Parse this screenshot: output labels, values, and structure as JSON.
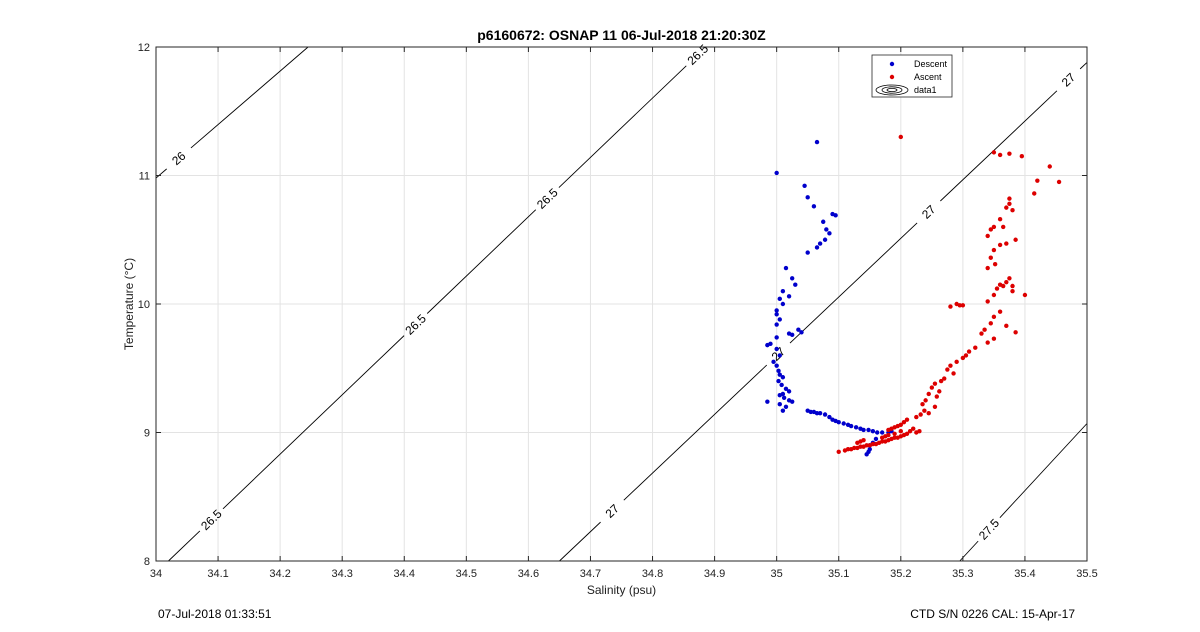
{
  "chart_data": {
    "type": "scatter",
    "title": "p6160672: OSNAP 11 06-Jul-2018 21:20:30Z",
    "xlabel": "Salinity (psu)",
    "ylabel": "Temperature (°C)",
    "xlim": [
      34,
      35.5
    ],
    "ylim": [
      8,
      12
    ],
    "xticks": [
      "34",
      "34.1",
      "34.2",
      "34.3",
      "34.4",
      "34.5",
      "34.6",
      "34.7",
      "34.8",
      "34.9",
      "35",
      "35.1",
      "35.2",
      "35.3",
      "35.4",
      "35.5"
    ],
    "yticks": [
      "8",
      "9",
      "10",
      "11",
      "12"
    ],
    "grid": true,
    "legend_position": "top-right",
    "series": [
      {
        "name": "Descent",
        "color": "#0000cc",
        "points": [
          [
            35.0,
            11.02
          ],
          [
            35.065,
            11.26
          ],
          [
            35.045,
            10.92
          ],
          [
            35.05,
            10.83
          ],
          [
            35.06,
            10.76
          ],
          [
            35.09,
            10.7
          ],
          [
            35.095,
            10.69
          ],
          [
            35.075,
            10.64
          ],
          [
            35.08,
            10.58
          ],
          [
            35.085,
            10.55
          ],
          [
            35.078,
            10.5
          ],
          [
            35.07,
            10.47
          ],
          [
            35.065,
            10.44
          ],
          [
            35.05,
            10.4
          ],
          [
            35.015,
            10.28
          ],
          [
            35.025,
            10.2
          ],
          [
            35.03,
            10.15
          ],
          [
            35.01,
            10.1
          ],
          [
            35.02,
            10.06
          ],
          [
            35.005,
            10.04
          ],
          [
            35.01,
            10.0
          ],
          [
            35.0,
            9.95
          ],
          [
            35.0,
            9.92
          ],
          [
            35.005,
            9.88
          ],
          [
            35.0,
            9.84
          ],
          [
            35.035,
            9.8
          ],
          [
            35.04,
            9.78
          ],
          [
            35.025,
            9.76
          ],
          [
            35.02,
            9.77
          ],
          [
            35.0,
            9.74
          ],
          [
            34.99,
            9.69
          ],
          [
            34.985,
            9.68
          ],
          [
            35.0,
            9.65
          ],
          [
            35.005,
            9.6
          ],
          [
            34.995,
            9.55
          ],
          [
            35.0,
            9.52
          ],
          [
            35.003,
            9.48
          ],
          [
            35.005,
            9.45
          ],
          [
            35.01,
            9.43
          ],
          [
            35.003,
            9.4
          ],
          [
            35.008,
            9.37
          ],
          [
            35.015,
            9.34
          ],
          [
            35.02,
            9.32
          ],
          [
            35.01,
            9.3
          ],
          [
            35.005,
            9.29
          ],
          [
            35.012,
            9.27
          ],
          [
            35.02,
            9.25
          ],
          [
            35.025,
            9.24
          ],
          [
            35.005,
            9.22
          ],
          [
            35.015,
            9.2
          ],
          [
            35.01,
            9.17
          ],
          [
            34.985,
            9.24
          ],
          [
            35.05,
            9.17
          ],
          [
            35.055,
            9.16
          ],
          [
            35.06,
            9.16
          ],
          [
            35.065,
            9.15
          ],
          [
            35.07,
            9.15
          ],
          [
            35.078,
            9.14
          ],
          [
            35.085,
            9.12
          ],
          [
            35.09,
            9.1
          ],
          [
            35.095,
            9.09
          ],
          [
            35.1,
            9.08
          ],
          [
            35.108,
            9.07
          ],
          [
            35.115,
            9.06
          ],
          [
            35.12,
            9.05
          ],
          [
            35.128,
            9.04
          ],
          [
            35.135,
            9.03
          ],
          [
            35.14,
            9.02
          ],
          [
            35.148,
            9.02
          ],
          [
            35.155,
            9.01
          ],
          [
            35.162,
            9.0
          ],
          [
            35.17,
            9.0
          ],
          [
            35.18,
            9.0
          ],
          [
            35.185,
            9.01
          ],
          [
            35.16,
            8.95
          ],
          [
            35.155,
            8.92
          ],
          [
            35.15,
            8.9
          ],
          [
            35.15,
            8.87
          ],
          [
            35.148,
            8.85
          ],
          [
            35.145,
            8.83
          ]
        ]
      },
      {
        "name": "Ascent",
        "color": "#dd0000",
        "points": [
          [
            35.2,
            11.3
          ],
          [
            35.35,
            11.18
          ],
          [
            35.36,
            11.16
          ],
          [
            35.375,
            11.17
          ],
          [
            35.395,
            11.15
          ],
          [
            35.44,
            11.07
          ],
          [
            35.455,
            10.95
          ],
          [
            35.42,
            10.96
          ],
          [
            35.415,
            10.86
          ],
          [
            35.375,
            10.82
          ],
          [
            35.375,
            10.78
          ],
          [
            35.37,
            10.75
          ],
          [
            35.38,
            10.73
          ],
          [
            35.36,
            10.66
          ],
          [
            35.365,
            10.6
          ],
          [
            35.35,
            10.6
          ],
          [
            35.345,
            10.58
          ],
          [
            35.34,
            10.53
          ],
          [
            35.385,
            10.5
          ],
          [
            35.37,
            10.47
          ],
          [
            35.36,
            10.46
          ],
          [
            35.35,
            10.42
          ],
          [
            35.345,
            10.36
          ],
          [
            35.352,
            10.31
          ],
          [
            35.34,
            10.28
          ],
          [
            35.375,
            10.2
          ],
          [
            35.37,
            10.17
          ],
          [
            35.365,
            10.14
          ],
          [
            35.36,
            10.15
          ],
          [
            35.38,
            10.14
          ],
          [
            35.38,
            10.1
          ],
          [
            35.355,
            10.12
          ],
          [
            35.4,
            10.07
          ],
          [
            35.35,
            10.07
          ],
          [
            35.34,
            10.02
          ],
          [
            35.29,
            10.0
          ],
          [
            35.3,
            9.99
          ],
          [
            35.28,
            9.98
          ],
          [
            35.295,
            9.99
          ],
          [
            35.36,
            9.94
          ],
          [
            35.35,
            9.9
          ],
          [
            35.345,
            9.85
          ],
          [
            35.37,
            9.83
          ],
          [
            35.385,
            9.78
          ],
          [
            35.335,
            9.8
          ],
          [
            35.33,
            9.77
          ],
          [
            35.35,
            9.73
          ],
          [
            35.34,
            9.7
          ],
          [
            35.32,
            9.66
          ],
          [
            35.31,
            9.63
          ],
          [
            35.305,
            9.6
          ],
          [
            35.3,
            9.58
          ],
          [
            35.29,
            9.55
          ],
          [
            35.28,
            9.52
          ],
          [
            35.275,
            9.49
          ],
          [
            35.285,
            9.46
          ],
          [
            35.27,
            9.42
          ],
          [
            35.265,
            9.4
          ],
          [
            35.255,
            9.38
          ],
          [
            35.25,
            9.35
          ],
          [
            35.262,
            9.32
          ],
          [
            35.245,
            9.3
          ],
          [
            35.258,
            9.28
          ],
          [
            35.24,
            9.25
          ],
          [
            35.235,
            9.22
          ],
          [
            35.255,
            9.2
          ],
          [
            35.238,
            9.17
          ],
          [
            35.245,
            9.15
          ],
          [
            35.232,
            9.14
          ],
          [
            35.225,
            9.12
          ],
          [
            35.21,
            9.1
          ],
          [
            35.205,
            9.08
          ],
          [
            35.2,
            9.06
          ],
          [
            35.195,
            9.05
          ],
          [
            35.19,
            9.04
          ],
          [
            35.185,
            9.03
          ],
          [
            35.18,
            9.02
          ],
          [
            35.22,
            9.03
          ],
          [
            35.215,
            9.01
          ],
          [
            35.21,
            8.99
          ],
          [
            35.205,
            8.98
          ],
          [
            35.2,
            8.97
          ],
          [
            35.195,
            8.96
          ],
          [
            35.19,
            8.96
          ],
          [
            35.185,
            8.95
          ],
          [
            35.18,
            8.94
          ],
          [
            35.175,
            8.93
          ],
          [
            35.17,
            8.93
          ],
          [
            35.165,
            8.92
          ],
          [
            35.16,
            8.91
          ],
          [
            35.155,
            8.91
          ],
          [
            35.15,
            8.9
          ],
          [
            35.145,
            8.9
          ],
          [
            35.14,
            8.89
          ],
          [
            35.135,
            8.89
          ],
          [
            35.13,
            8.88
          ],
          [
            35.125,
            8.88
          ],
          [
            35.12,
            8.87
          ],
          [
            35.115,
            8.87
          ],
          [
            35.11,
            8.86
          ],
          [
            35.1,
            8.85
          ],
          [
            35.23,
            9.01
          ],
          [
            35.225,
            9.0
          ],
          [
            35.14,
            8.94
          ],
          [
            35.135,
            8.93
          ],
          [
            35.13,
            8.92
          ],
          [
            35.17,
            8.96
          ],
          [
            35.175,
            8.97
          ],
          [
            35.18,
            8.98
          ],
          [
            35.19,
            8.99
          ],
          [
            35.2,
            9.01
          ]
        ]
      }
    ],
    "contours": [
      {
        "label": "26",
        "points": [
          [
            34.0,
            10.98
          ],
          [
            34.245,
            12.0
          ]
        ],
        "labels_at": [
          0.15
        ]
      },
      {
        "label": "26.5",
        "points": [
          [
            34.02,
            8.0
          ],
          [
            34.886,
            12.0
          ]
        ],
        "labels_at": [
          0.08,
          0.46,
          0.705,
          0.985
        ]
      },
      {
        "label": "27",
        "points": [
          [
            34.65,
            8.0
          ],
          [
            35.5,
            11.88
          ]
        ],
        "labels_at": [
          0.1,
          0.415,
          0.7,
          0.965
        ]
      },
      {
        "label": "27.5",
        "points": [
          [
            35.295,
            8.0
          ],
          [
            35.5,
            9.07
          ]
        ],
        "labels_at": [
          0.23
        ]
      }
    ],
    "legend": [
      {
        "label": "Descent",
        "type": "dot",
        "color": "#0000cc"
      },
      {
        "label": "Ascent",
        "type": "dot",
        "color": "#dd0000"
      },
      {
        "label": "data1",
        "type": "contour",
        "color": "#000000"
      }
    ]
  },
  "footer": {
    "left": "07-Jul-2018 01:33:51",
    "right": "CTD S/N 0226  CAL: 15-Apr-17"
  }
}
